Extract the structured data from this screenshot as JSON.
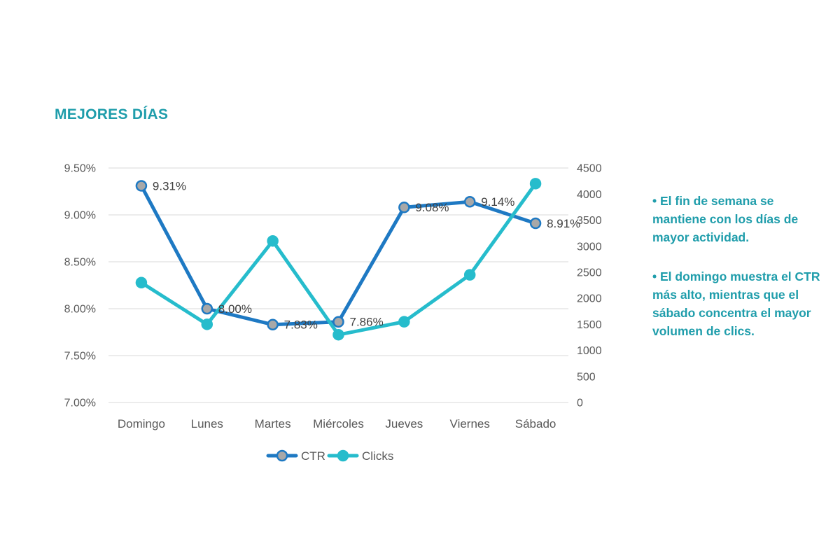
{
  "title": "MEJORES DÍAS",
  "colors": {
    "title": "#1F9DAB",
    "annotation": "#1F9DAB",
    "ctr_line": "#1E79C3",
    "ctr_marker_fill": "#A8A8A8",
    "clicks_line": "#26BCCC",
    "axis_text": "#595959",
    "data_label_text": "#3F3F3F",
    "gridline": "#D9D9D9",
    "background": "#FFFFFF"
  },
  "chart_data": {
    "type": "line",
    "title": "MEJORES DÍAS",
    "categories": [
      "Domingo",
      "Lunes",
      "Martes",
      "Miércoles",
      "Jueves",
      "Viernes",
      "Sábado"
    ],
    "series": [
      {
        "name": "CTR",
        "axis": "left",
        "values": [
          9.31,
          8.0,
          7.83,
          7.86,
          9.08,
          9.14,
          8.91
        ],
        "point_labels": [
          "9.31%",
          "8.00%",
          "7.83%",
          "7.86%",
          "9.08%",
          "9.14%",
          "8.91%"
        ],
        "color": "#1E79C3",
        "marker_fill": "#A8A8A8"
      },
      {
        "name": "Clicks",
        "axis": "right",
        "values": [
          2300,
          1500,
          3100,
          1300,
          1550,
          2450,
          4200
        ],
        "point_labels": null,
        "color": "#26BCCC",
        "marker_fill": "#26BCCC"
      }
    ],
    "left_axis": {
      "min": 7.0,
      "max": 9.5,
      "step": 0.5,
      "tick_labels": [
        "9.50%",
        "9.00%",
        "8.50%",
        "8.00%",
        "7.50%",
        "7.00%"
      ]
    },
    "right_axis": {
      "min": 0,
      "max": 4500,
      "step": 500,
      "tick_labels": [
        "4500",
        "4000",
        "3500",
        "3000",
        "2500",
        "2000",
        "1500",
        "1000",
        "500",
        "0"
      ]
    },
    "grid": true,
    "legend_position": "bottom",
    "legend": [
      {
        "label": "CTR"
      },
      {
        "label": "Clicks"
      }
    ]
  },
  "annotation": {
    "paragraphs": [
      "• El fin de semana se mantiene con los días de mayor actividad.",
      "• El domingo muestra el CTR más alto, mientras que el sábado concentra el mayor volumen de clics."
    ]
  }
}
